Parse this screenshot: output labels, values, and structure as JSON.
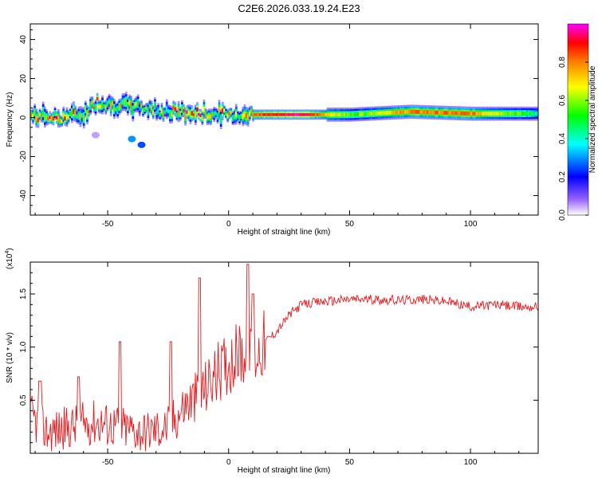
{
  "title": "C2E6.2026.033.19.24.E23",
  "chart_data": [
    {
      "type": "heatmap",
      "name": "spectrogram",
      "xlabel": "Height of straight line (km)",
      "ylabel": "Frequency (Hz)",
      "xlim": [
        -82,
        128
      ],
      "ylim": [
        -50,
        48
      ],
      "xticks": [
        -50,
        0,
        50,
        100
      ],
      "yticks": [
        -40,
        -20,
        0,
        20,
        40
      ],
      "colorbar": {
        "label": "Normalized spectral amplitude",
        "ticks": [
          "0.0",
          "0.2",
          "0.4",
          "0.6",
          "0.8"
        ],
        "range": [
          0,
          1
        ],
        "colors": [
          "#ffffff",
          "#9966ff",
          "#0000ff",
          "#00ffff",
          "#00ff00",
          "#ffff00",
          "#ff8000",
          "#ff0000",
          "#ff00ff"
        ]
      },
      "ridge": {
        "x": [
          -82,
          -70,
          -60,
          -55,
          -45,
          -35,
          -25,
          -15,
          0,
          15,
          30,
          50,
          75,
          100,
          128
        ],
        "frequency": [
          1,
          0,
          2,
          8,
          6,
          5,
          3,
          2,
          1.5,
          1.5,
          1.5,
          1.5,
          3,
          2,
          2
        ],
        "amplitude": [
          0.8,
          0.7,
          0.6,
          0.7,
          0.6,
          0.5,
          0.6,
          0.8,
          0.6,
          0.9,
          0.95,
          0.55,
          0.8,
          0.8,
          0.45
        ]
      },
      "features": [
        {
          "x": -40,
          "frequency": -11,
          "amplitude": 0.3
        },
        {
          "x": -36,
          "frequency": -14,
          "amplitude": 0.25
        },
        {
          "x": -55,
          "frequency": -9,
          "amplitude": 0.05
        }
      ]
    },
    {
      "type": "line",
      "name": "snr",
      "xlabel": "Height of straight line (km)",
      "ylabel": "SNR (10 * v/v)",
      "scale_label": "(x10",
      "scale_exp": "4",
      "xlim": [
        -82,
        128
      ],
      "ylim": [
        0,
        1.8
      ],
      "xticks": [
        -50,
        0,
        50,
        100
      ],
      "yticks": [
        0.5,
        1.0,
        1.5
      ],
      "ytick_labels": [
        "0.5",
        "1.0",
        "1.5"
      ],
      "color": "#e8191d",
      "trend": {
        "x": [
          -82,
          -75,
          -65,
          -55,
          -45,
          -35,
          -25,
          -18,
          -12,
          -5,
          0,
          5,
          10,
          15,
          20,
          25,
          30,
          40,
          50,
          60,
          70,
          80,
          90,
          100,
          110,
          120,
          128
        ],
        "y": [
          0.35,
          0.2,
          0.25,
          0.3,
          0.25,
          0.2,
          0.25,
          0.45,
          0.55,
          0.75,
          0.85,
          0.95,
          0.9,
          1.05,
          1.15,
          1.3,
          1.4,
          1.43,
          1.45,
          1.45,
          1.44,
          1.45,
          1.43,
          1.38,
          1.4,
          1.38,
          1.38
        ]
      },
      "peaks": [
        {
          "x": -78,
          "y": 0.68
        },
        {
          "x": -62,
          "y": 0.72
        },
        {
          "x": -45,
          "y": 1.05
        },
        {
          "x": -24,
          "y": 1.05
        },
        {
          "x": -12,
          "y": 1.65
        },
        {
          "x": 8,
          "y": 1.78
        },
        {
          "x": 10,
          "y": 1.5
        }
      ]
    }
  ]
}
